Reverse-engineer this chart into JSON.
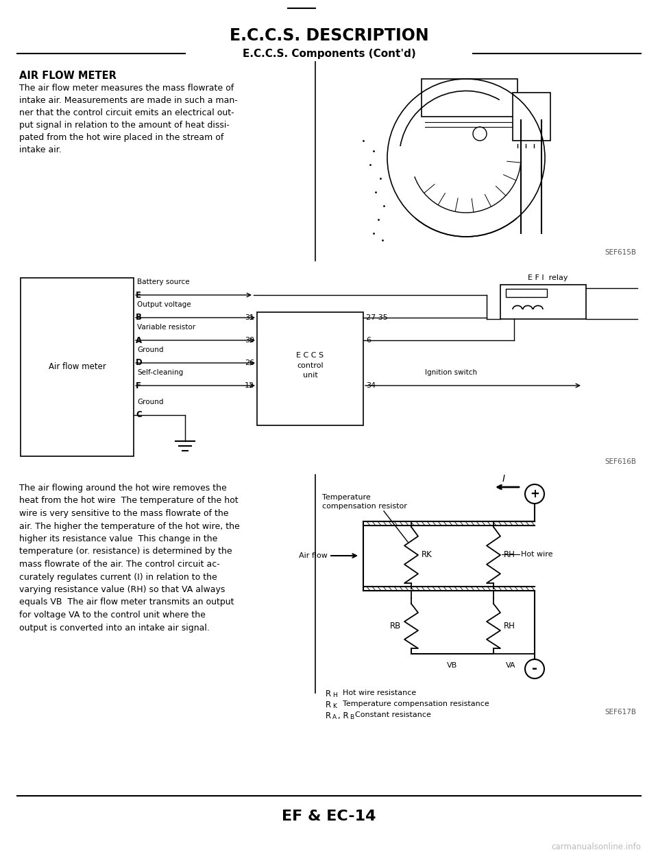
{
  "page_title": "E.C.C.S. DESCRIPTION",
  "section_title": "E.C.C.S. Components (Cont'd)",
  "afm_heading": "AIR FLOW METER",
  "afm_text_line1": "The air flow meter measures the mass flowrate of",
  "afm_text_line2": "intake air. Measurements are made in such a man-",
  "afm_text_line3": "ner that the control circuit emits an electrical out-",
  "afm_text_line4": "put signal in relation to the amount of heat dissi-",
  "afm_text_line5": "pated from the hot wire placed in the stream of",
  "afm_text_line6": "intake air.",
  "bottom_left_lines": [
    "The air flowing around the hot wire removes the",
    "heat from the hot wire  The temperature of the hot",
    "wire is very sensitive to the mass flowrate of the",
    "air. The higher the temperature of the hot wire, the",
    "higher its resistance value  This change in the",
    "temperature (or. resistance) is determined by the",
    "mass flowrate of the air. The control circuit ac-",
    "curately regulates current (I) in relation to the",
    "varying resistance value (RH) so that VA always",
    "equals VB  The air flow meter transmits an output",
    "for voltage VA to the control unit where the",
    "output is converted into an intake air signal."
  ],
  "footer": "EF & EC-14",
  "watermark": "carmanualsonline.info",
  "fig1_label": "SEF615B",
  "fig2_label": "SEF616B",
  "fig3_label": "SEF617B",
  "bg_color": "#ffffff",
  "text_color": "#000000"
}
